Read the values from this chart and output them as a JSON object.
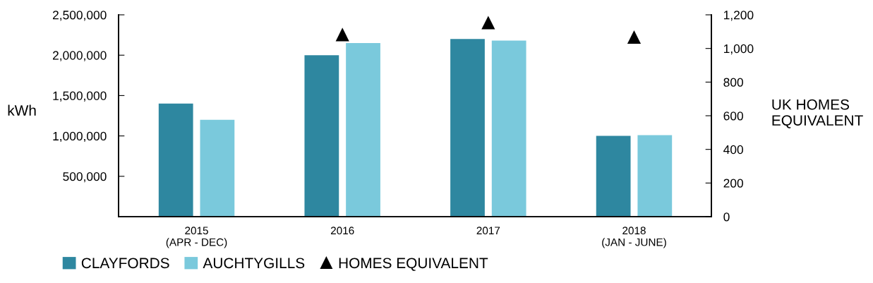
{
  "chart_data": {
    "type": "bar",
    "categories": [
      "2015\n(APR - DEC)",
      "2016",
      "2017",
      "2018\n(JAN - JUNE)"
    ],
    "ylabel": "kWh",
    "y2label": "UK HOMES\nEQUIVALENT",
    "series": [
      {
        "name": "CLAYFORDS",
        "color": "#2e87a0",
        "values": [
          1400000,
          2000000,
          2200000,
          1000000
        ]
      },
      {
        "name": "AUCHTYGILLS",
        "color": "#7ac9dc",
        "values": [
          1200000,
          2150000,
          2180000,
          1010000
        ]
      },
      {
        "name": "HOMES EQUIVALENT",
        "type": "scatter",
        "axis": "y2",
        "color": "#000000",
        "marker": "triangle",
        "values": [
          null,
          1083,
          1154,
          1068
        ]
      }
    ],
    "ylim": [
      0,
      2500000
    ],
    "yticks": [
      {
        "value": 500000,
        "label": "500,000"
      },
      {
        "value": 1000000,
        "label": "1,000,000"
      },
      {
        "value": 1500000,
        "label": "1,500,000"
      },
      {
        "value": 2000000,
        "label": "2,000,000"
      },
      {
        "value": 2500000,
        "label": "2,500,000"
      }
    ],
    "y2lim": [
      0,
      1200
    ],
    "y2ticks": [
      0,
      200,
      400,
      600,
      800,
      {
        "value": 1000,
        "label": "1,000"
      },
      {
        "value": 1200,
        "label": "1,200"
      }
    ],
    "legend": "bottom",
    "grid": false
  }
}
